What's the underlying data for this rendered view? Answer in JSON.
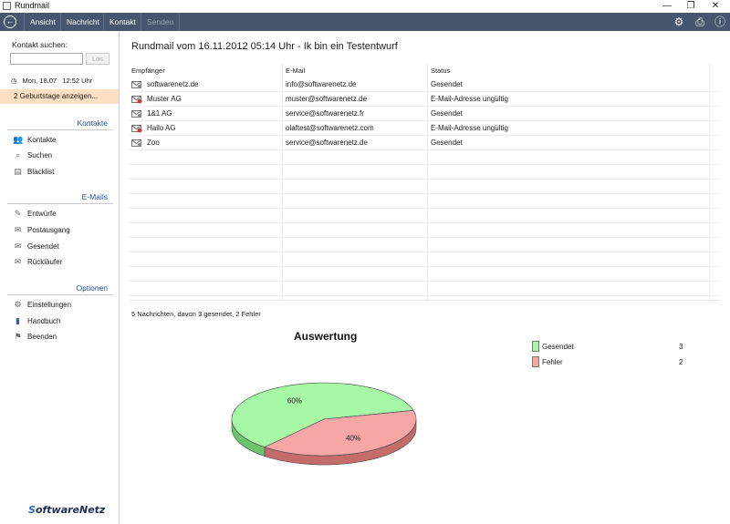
{
  "window": {
    "title": "Rundmail",
    "controls": [
      "—",
      "❐",
      "✕"
    ]
  },
  "toolbar": {
    "back_glyph": "←",
    "items": [
      "Ansicht",
      "Nachricht",
      "Kontakt",
      "Senden"
    ],
    "disabled_item": "Senden",
    "icons": [
      "gear-icon",
      "printer-icon",
      "info-icon"
    ],
    "icon_glyphs": {
      "gear": "⚙",
      "printer": "⎙",
      "info": "ⓘ"
    }
  },
  "sidebar": {
    "search_label": "Kontakt suchen:",
    "search_value": "",
    "search_button": "Los",
    "clock_glyph": "◷",
    "date_time": "Mon, 18.07   12:52 Uhr",
    "birthday_notice": "2 Geburtstage anzeigen...",
    "sections": [
      {
        "title": "Kontakte",
        "items": [
          {
            "label": "Kontakte",
            "icon": "contacts-icon",
            "glyph": "👥"
          },
          {
            "label": "Suchen",
            "icon": "search-icon",
            "glyph": "⌕"
          },
          {
            "label": "Blacklist",
            "icon": "blacklist-icon",
            "glyph": "▤"
          }
        ]
      },
      {
        "title": "E-Mails",
        "items": [
          {
            "label": "Entwürfe",
            "icon": "drafts-icon",
            "glyph": "✎"
          },
          {
            "label": "Postausgang",
            "icon": "outbox-icon",
            "glyph": "✉"
          },
          {
            "label": "Gesendet",
            "icon": "sent-icon",
            "glyph": "✉"
          },
          {
            "label": "Rückläufer",
            "icon": "bounced-icon",
            "glyph": "✉"
          }
        ]
      },
      {
        "title": "Optionen",
        "items": [
          {
            "label": "Einstellungen",
            "icon": "gear-icon",
            "glyph": "⚙"
          },
          {
            "label": "Handbuch",
            "icon": "manual-icon",
            "glyph": "▮"
          },
          {
            "label": "Beenden",
            "icon": "exit-icon",
            "glyph": "⚑"
          }
        ]
      }
    ],
    "logo_s": "S",
    "logo_rest": "oftwareNetz"
  },
  "main": {
    "heading": "Rundmail vom 16.11.2012 05:14 Uhr - Ik bin ein Testentwurf",
    "columns": [
      "Empfänger",
      "E-Mail",
      "Status"
    ],
    "rows": [
      {
        "recipient": "softwarenetz.de",
        "email": "info@softwarenetz.de",
        "status": "Gesendet",
        "icon": "envelope-sent-icon"
      },
      {
        "recipient": "Muster AG",
        "email": "muster@softwarenetz.de",
        "status": "E-Mail-Adresse ungültig",
        "icon": "envelope-error-icon"
      },
      {
        "recipient": "1&1 AG",
        "email": "service@softwarenetz.fr",
        "status": "Gesendet",
        "icon": "envelope-sent-icon"
      },
      {
        "recipient": "Hallo AG",
        "email": "olaftest@softwarenetz.com",
        "status": "E-Mail-Adresse ungültig",
        "icon": "envelope-error-icon"
      },
      {
        "recipient": "Zoo",
        "email": "service@softwarenetz.de",
        "status": "Gesendet",
        "icon": "envelope-sent-icon"
      }
    ],
    "summary": "5 Nachrichten, davon 3 gesendet, 2 Fehler"
  },
  "colors": {
    "toolbar_bg": "#45566e",
    "accent_blue": "#2a4ea0",
    "birthday_bg": "#fde0c2",
    "sent_green": "#a6f7a6",
    "sent_green_side": "#6cc46c",
    "error_red": "#f7a6a6",
    "error_red_side": "#c46c6c"
  },
  "chart_data": {
    "type": "pie",
    "title": "Auswertung",
    "categories": [
      "Gesendet",
      "Fehler"
    ],
    "values": [
      3,
      2
    ],
    "slice_labels": [
      "60%",
      "40%"
    ],
    "legend_placement": "top-right"
  }
}
